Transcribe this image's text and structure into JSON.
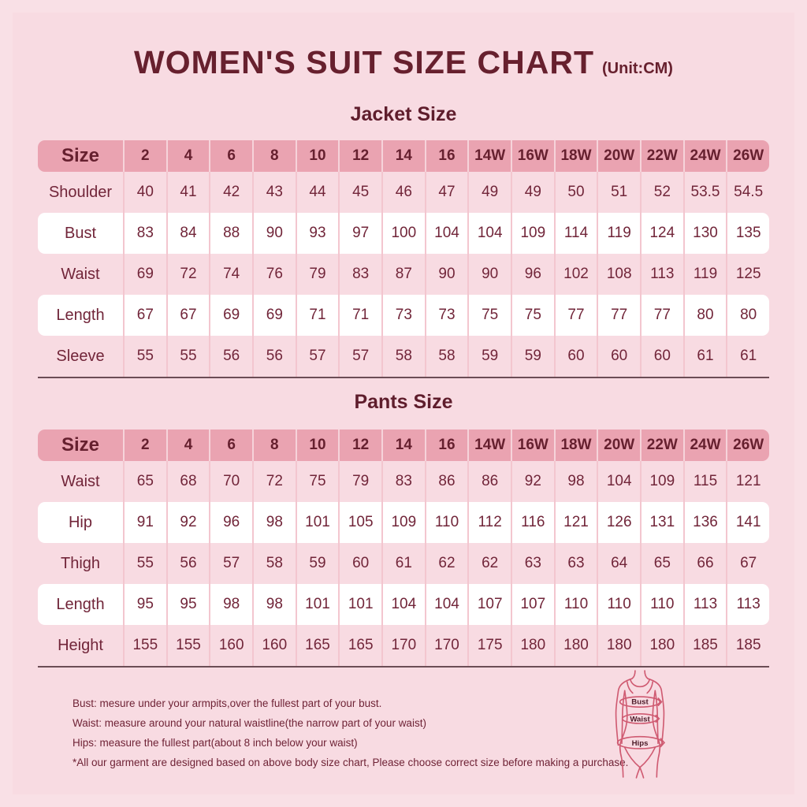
{
  "header": {
    "title": "WOMEN'S SUIT SIZE CHART",
    "unit": "(Unit:CM)"
  },
  "colors": {
    "page_background": "#f8dbe2",
    "table_header_background": "#eaa3b1",
    "highlight_row_background": "#ffffff",
    "divider": "#f3c6cf",
    "dark_text": "#67202e",
    "table_bottom_line": "#6b4d55",
    "figure_outline": "#cf5a71"
  },
  "jacket_table": {
    "section_title": "Jacket Size",
    "header": [
      "Size",
      "2",
      "4",
      "6",
      "8",
      "10",
      "12",
      "14",
      "16",
      "14W",
      "16W",
      "18W",
      "20W",
      "22W",
      "24W",
      "26W"
    ],
    "rows": [
      {
        "label": "Shoulder",
        "highlight": false,
        "values": [
          40,
          41,
          42,
          43,
          44,
          45,
          46,
          47,
          49,
          49,
          50,
          51,
          52,
          53.5,
          54.5
        ]
      },
      {
        "label": "Bust",
        "highlight": true,
        "values": [
          83,
          84,
          88,
          90,
          93,
          97,
          100,
          104,
          104,
          109,
          114,
          119,
          124,
          130,
          135
        ]
      },
      {
        "label": "Waist",
        "highlight": false,
        "values": [
          69,
          72,
          74,
          76,
          79,
          83,
          87,
          90,
          90,
          96,
          102,
          108,
          113,
          119,
          125
        ]
      },
      {
        "label": "Length",
        "highlight": true,
        "values": [
          67,
          67,
          69,
          69,
          71,
          71,
          73,
          73,
          75,
          75,
          77,
          77,
          77,
          80,
          80
        ]
      },
      {
        "label": "Sleeve",
        "highlight": false,
        "values": [
          55,
          55,
          56,
          56,
          57,
          57,
          58,
          58,
          59,
          59,
          60,
          60,
          60,
          61,
          61
        ]
      }
    ]
  },
  "pants_table": {
    "section_title": "Pants Size",
    "header": [
      "Size",
      "2",
      "4",
      "6",
      "8",
      "10",
      "12",
      "14",
      "16",
      "14W",
      "16W",
      "18W",
      "20W",
      "22W",
      "24W",
      "26W"
    ],
    "rows": [
      {
        "label": "Waist",
        "highlight": false,
        "values": [
          65,
          68,
          70,
          72,
          75,
          79,
          83,
          86,
          86,
          92,
          98,
          104,
          109,
          115,
          121
        ]
      },
      {
        "label": "Hip",
        "highlight": true,
        "values": [
          91,
          92,
          96,
          98,
          101,
          105,
          109,
          110,
          112,
          116,
          121,
          126,
          131,
          136,
          141
        ]
      },
      {
        "label": "Thigh",
        "highlight": false,
        "values": [
          55,
          56,
          57,
          58,
          59,
          60,
          61,
          62,
          62,
          63,
          63,
          64,
          65,
          66,
          67
        ]
      },
      {
        "label": "Length",
        "highlight": true,
        "values": [
          95,
          95,
          98,
          98,
          101,
          101,
          104,
          104,
          107,
          107,
          110,
          110,
          110,
          113,
          113
        ]
      },
      {
        "label": "Height",
        "highlight": false,
        "values": [
          155,
          155,
          160,
          160,
          165,
          165,
          170,
          170,
          175,
          180,
          180,
          180,
          180,
          185,
          185
        ]
      }
    ]
  },
  "notes": {
    "lines": [
      "Bust: mesure under your armpits,over the fullest part of your bust.",
      "Waist: measure around your natural waistline(the narrow part of your waist)",
      "Hips: measure the fullest part(about 8 inch below your waist)",
      "*All our garment are designed based on above body size chart, Please choose correct size before making a purchase."
    ]
  },
  "figure": {
    "bust_label": "Bust",
    "waist_label": "Waist",
    "hips_label": "Hips"
  }
}
